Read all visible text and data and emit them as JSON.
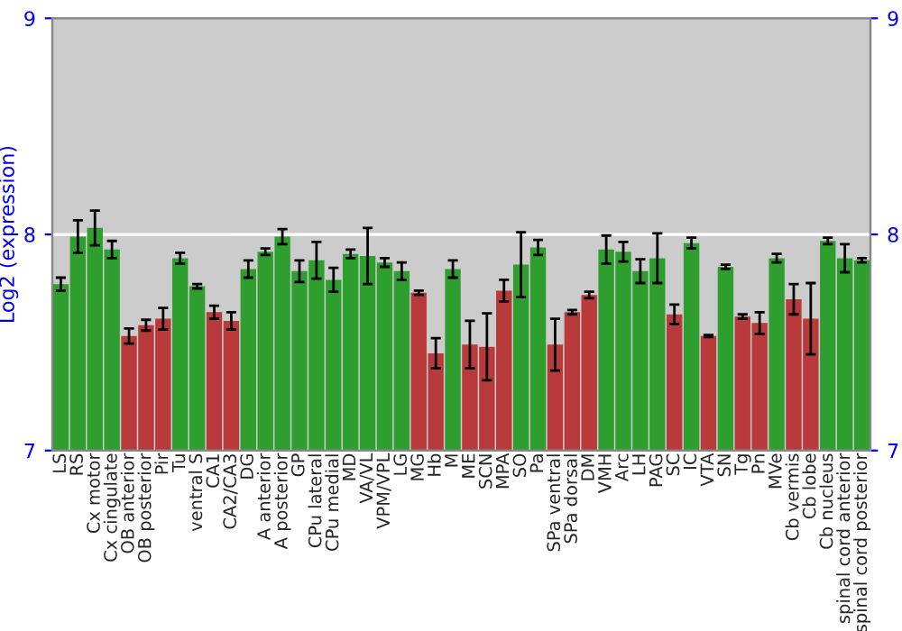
{
  "chart_data": {
    "type": "bar",
    "ylabel": "Log2 (expression)",
    "categories": [
      "LS",
      "RS",
      "Cx motor",
      "Cx cingulate",
      "OB anterior",
      "OB posterior",
      "Pir",
      "Tu",
      "ventral S",
      "CA1",
      "CA2/CA3",
      "DG",
      "A anterior",
      "A posterior",
      "GP",
      "CPu lateral",
      "CPu medial",
      "MD",
      "VA/VL",
      "VPM/VPL",
      "LG",
      "MG",
      "Hb",
      "M",
      "ME",
      "SCN",
      "MPA",
      "SO",
      "Pa",
      "SPa ventral",
      "SPa dorsal",
      "DM",
      "VMH",
      "Arc",
      "LH",
      "PAG",
      "SC",
      "IC",
      "VTA",
      "SN",
      "Tg",
      "Pn",
      "MVe",
      "Cb vermis",
      "Cb lobe",
      "Cb nucleus",
      "spinal cord anterior",
      "spinal cord posterior"
    ],
    "values": [
      7.77,
      7.99,
      8.03,
      7.93,
      7.53,
      7.58,
      7.61,
      7.89,
      7.76,
      7.64,
      7.6,
      7.84,
      7.92,
      7.99,
      7.83,
      7.88,
      7.79,
      7.91,
      7.9,
      7.87,
      7.83,
      7.73,
      7.45,
      7.84,
      7.49,
      7.48,
      7.74,
      7.86,
      7.94,
      7.49,
      7.64,
      7.72,
      7.93,
      7.92,
      7.83,
      7.89,
      7.63,
      7.96,
      7.53,
      7.85,
      7.62,
      7.59,
      7.89,
      7.7,
      7.61,
      7.97,
      7.89,
      7.88
    ],
    "errors": [
      0.03,
      0.075,
      0.08,
      0.04,
      0.035,
      0.025,
      0.05,
      0.025,
      0.01,
      0.03,
      0.04,
      0.04,
      0.015,
      0.035,
      0.05,
      0.085,
      0.055,
      0.02,
      0.13,
      0.02,
      0.04,
      0.01,
      0.07,
      0.04,
      0.11,
      0.155,
      0.05,
      0.15,
      0.035,
      0.12,
      0.01,
      0.015,
      0.065,
      0.045,
      0.055,
      0.115,
      0.045,
      0.025,
      0.005,
      0.01,
      0.01,
      0.05,
      0.02,
      0.07,
      0.165,
      0.015,
      0.065,
      0.01
    ],
    "colors": [
      "#2e9e2e",
      "#2e9e2e",
      "#2e9e2e",
      "#2e9e2e",
      "#b83a3a",
      "#b83a3a",
      "#b83a3a",
      "#2e9e2e",
      "#2e9e2e",
      "#b83a3a",
      "#b83a3a",
      "#2e9e2e",
      "#2e9e2e",
      "#2e9e2e",
      "#2e9e2e",
      "#2e9e2e",
      "#2e9e2e",
      "#2e9e2e",
      "#2e9e2e",
      "#2e9e2e",
      "#2e9e2e",
      "#b83a3a",
      "#b83a3a",
      "#2e9e2e",
      "#b83a3a",
      "#b83a3a",
      "#b83a3a",
      "#2e9e2e",
      "#2e9e2e",
      "#b83a3a",
      "#b83a3a",
      "#b83a3a",
      "#2e9e2e",
      "#2e9e2e",
      "#2e9e2e",
      "#2e9e2e",
      "#b83a3a",
      "#2e9e2e",
      "#b83a3a",
      "#2e9e2e",
      "#b83a3a",
      "#b83a3a",
      "#2e9e2e",
      "#b83a3a",
      "#b83a3a",
      "#2e9e2e",
      "#2e9e2e",
      "#2e9e2e"
    ],
    "ylim": [
      7,
      9
    ],
    "yticks": [
      7,
      8,
      9
    ],
    "y2lim": [
      7,
      9
    ],
    "y2ticks": [
      7,
      8,
      9
    ],
    "grid": "y"
  }
}
